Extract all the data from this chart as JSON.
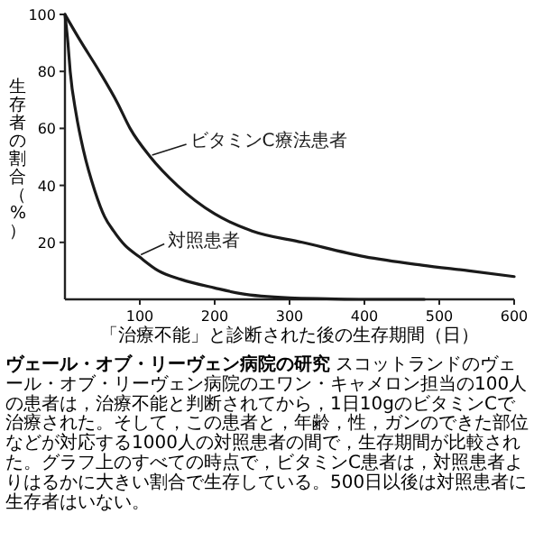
{
  "chart_data": {
    "type": "line",
    "title": "ヴェール・オブ・リーヴェン病院の研究",
    "xlabel": "「治療不能」と診断された後の生存期間（日）",
    "ylabel": "生存者の割合（%）",
    "xlim": [
      0,
      600
    ],
    "xticks": [
      100,
      200,
      300,
      400,
      500,
      600
    ],
    "ylim": [
      0,
      100
    ],
    "yticks": [
      20,
      40,
      60,
      80,
      100
    ],
    "grid": false,
    "legend": "center",
    "marker": "none",
    "line_style": "solid",
    "color": "#1a1a1a",
    "series": [
      {
        "name": "ビタミンC療法患者",
        "x": [
          0,
          20,
          46,
          70,
          87,
          114,
          150,
          200,
          250,
          317,
          400,
          477,
          540,
          600
        ],
        "values": [
          100,
          91,
          80,
          69,
          60,
          50,
          40,
          30,
          24,
          20,
          15,
          12,
          10,
          8
        ]
      },
      {
        "name": "対照患者",
        "x": [
          0,
          4,
          7,
          15,
          25,
          40,
          53,
          65,
          80,
          99,
          125,
          155,
          200,
          235,
          300,
          350,
          400,
          480
        ],
        "values": [
          100,
          90,
          80,
          65,
          52,
          38,
          29,
          24,
          19,
          15,
          10,
          7,
          4,
          2,
          0.5,
          0.2,
          0,
          0
        ]
      }
    ],
    "annotations": [
      "スコットランドのヴェール・オブ・リーヴェン病院のエワン・キャメロン担当の100人の患者は，治療不能と判断されてから，1日10gのビタミンCで治療された。そして，この患者と，年齢，性，ガンのできた部位などが対応する1000人の対照患者の間で，生存期間が比較された。グラフ上のすべての時点で，ビタミンC患者は，対照患者よりはるかに大きい割合で生存している。500日以後は対照患者に生存者はいない。"
    ]
  }
}
